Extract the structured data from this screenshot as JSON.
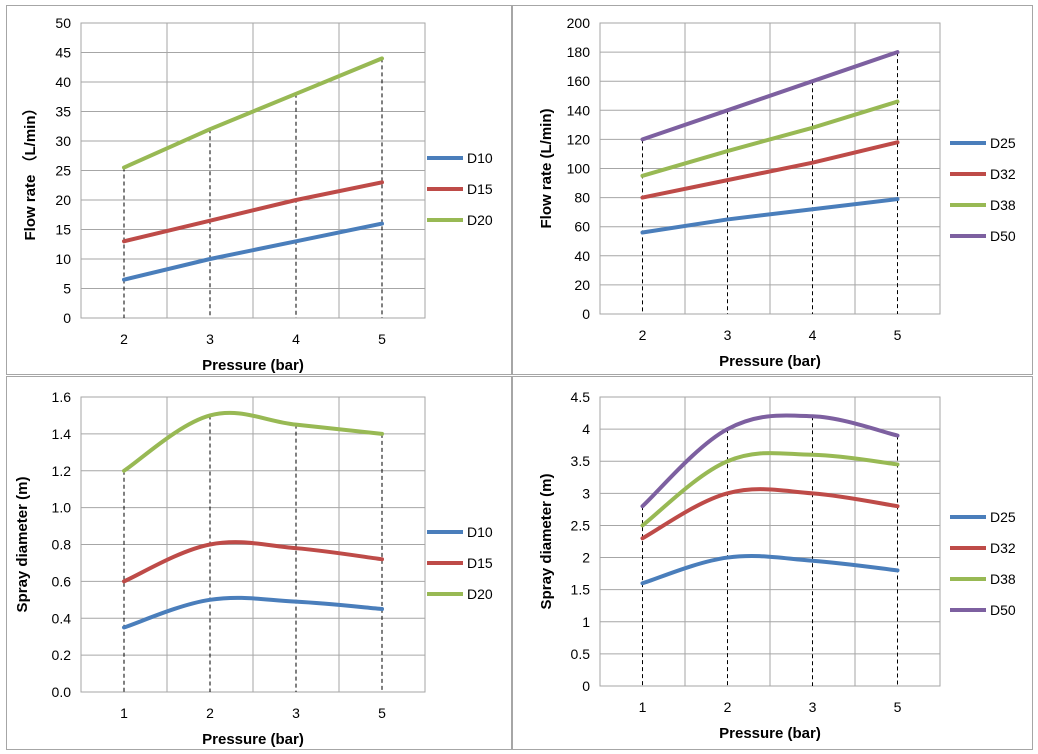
{
  "chart_data": [
    {
      "type": "line",
      "title": "",
      "xlabel": "Pressure (bar)",
      "ylabel": "Flow rate （L/min）",
      "categories": [
        "2",
        "3",
        "4",
        "5"
      ],
      "ylim": [
        0,
        50
      ],
      "ytick_step": 5,
      "ytick_decimals": 0,
      "grid": true,
      "legend_position": "right",
      "series": [
        {
          "name": "D10",
          "color": "#4a7ebb",
          "values": [
            6.5,
            10,
            13,
            16
          ]
        },
        {
          "name": "D15",
          "color": "#be4b48",
          "values": [
            13,
            16.5,
            20,
            23
          ]
        },
        {
          "name": "D20",
          "color": "#98b954",
          "values": [
            25.5,
            32,
            38,
            44
          ]
        }
      ]
    },
    {
      "type": "line",
      "title": "",
      "xlabel": "Pressure (bar)",
      "ylabel": "Flow rate (L/min)",
      "categories": [
        "2",
        "3",
        "4",
        "5"
      ],
      "ylim": [
        0,
        200
      ],
      "ytick_step": 20,
      "ytick_decimals": 0,
      "grid": true,
      "legend_position": "right",
      "series": [
        {
          "name": "D25",
          "color": "#4a7ebb",
          "values": [
            56,
            65,
            72,
            79
          ]
        },
        {
          "name": "D32",
          "color": "#be4b48",
          "values": [
            80,
            92,
            104,
            118
          ]
        },
        {
          "name": "D38",
          "color": "#98b954",
          "values": [
            95,
            112,
            128,
            146
          ]
        },
        {
          "name": "D50",
          "color": "#7d60a0",
          "values": [
            120,
            140,
            160,
            180
          ]
        }
      ]
    },
    {
      "type": "line",
      "title": "",
      "xlabel": "Pressure (bar)",
      "ylabel": "Spray diameter (m)",
      "categories": [
        "1",
        "2",
        "3",
        "5"
      ],
      "ylim": [
        0,
        1.6
      ],
      "ytick_step": 0.2,
      "ytick_decimals": 1,
      "grid": true,
      "legend_position": "right",
      "smooth": true,
      "series": [
        {
          "name": "D10",
          "color": "#4a7ebb",
          "values": [
            0.35,
            0.5,
            0.49,
            0.45
          ]
        },
        {
          "name": "D15",
          "color": "#be4b48",
          "values": [
            0.6,
            0.8,
            0.78,
            0.72
          ]
        },
        {
          "name": "D20",
          "color": "#98b954",
          "values": [
            1.2,
            1.5,
            1.45,
            1.4
          ]
        }
      ]
    },
    {
      "type": "line",
      "title": "",
      "xlabel": "Pressure (bar)",
      "ylabel": "Spray diameter (m)",
      "categories": [
        "1",
        "2",
        "3",
        "5"
      ],
      "ylim": [
        0,
        4.5
      ],
      "ytick_step": 0.5,
      "ytick_decimals": -1,
      "grid": true,
      "legend_position": "right",
      "smooth": true,
      "series": [
        {
          "name": "D25",
          "color": "#4a7ebb",
          "values": [
            1.6,
            2.0,
            1.95,
            1.8
          ]
        },
        {
          "name": "D32",
          "color": "#be4b48",
          "values": [
            2.3,
            3.0,
            3.0,
            2.8
          ]
        },
        {
          "name": "D38",
          "color": "#98b954",
          "values": [
            2.5,
            3.5,
            3.6,
            3.45
          ]
        },
        {
          "name": "D50",
          "color": "#7d60a0",
          "values": [
            2.8,
            4.0,
            4.2,
            3.9
          ]
        }
      ]
    }
  ]
}
